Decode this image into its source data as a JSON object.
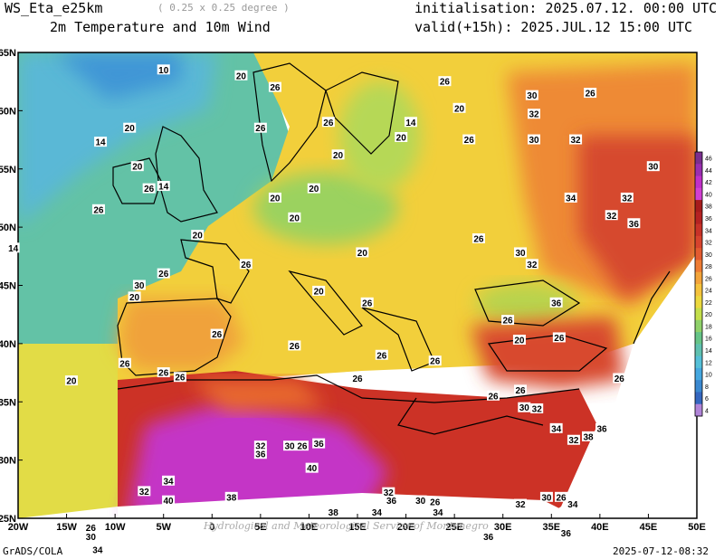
{
  "header": {
    "model": "WS_Eta_e25km",
    "resolution": "( 0.25 x 0.25 degree )",
    "variable": "2m Temperature and 10m Wind",
    "init": "initialisation: 2025.07.12. 00:00 UTC",
    "valid": "valid(+15h): 2025.JUL.12 15:00 UTC"
  },
  "footer": {
    "left": "GrADS/COLA",
    "right": "2025-07-12-08:32"
  },
  "watermark": "Hydrological and Meteorological Service of Montenegro",
  "axes": {
    "lon_labels": [
      "20W",
      "15W",
      "10W",
      "5W",
      "0",
      "5E",
      "10E",
      "15E",
      "20E",
      "25E",
      "30E",
      "35E",
      "40E",
      "45E",
      "50E"
    ],
    "lat_labels": [
      "65N",
      "60N",
      "55N",
      "50N",
      "45N",
      "40N",
      "35N",
      "30N",
      "25N"
    ]
  },
  "colorbar": {
    "levels": [
      "46",
      "44",
      "42",
      "40",
      "38",
      "36",
      "34",
      "32",
      "30",
      "28",
      "26",
      "24",
      "22",
      "20",
      "18",
      "16",
      "14",
      "12",
      "10",
      "8",
      "6",
      "4"
    ],
    "colors": [
      "#7b2f8f",
      "#9a2fb0",
      "#c030c8",
      "#d23fd2",
      "#a61c1c",
      "#b52222",
      "#c83228",
      "#d7432d",
      "#e35b30",
      "#ee7c34",
      "#f3a43a",
      "#f5c33c",
      "#ecd93e",
      "#c4df4b",
      "#8fd16a",
      "#66c487",
      "#5fc1b0",
      "#55c0d8",
      "#45a8e0",
      "#3a88d0",
      "#3466bf",
      "#b084d8"
    ]
  },
  "contour_labels": [
    {
      "t": "10",
      "lon": -5,
      "lat": 63.5
    },
    {
      "t": "20",
      "lon": 3,
      "lat": 63
    },
    {
      "t": "26",
      "lon": 6.5,
      "lat": 62
    },
    {
      "t": "26",
      "lon": 24,
      "lat": 62.5
    },
    {
      "t": "20",
      "lon": 25.5,
      "lat": 60.2
    },
    {
      "t": "30",
      "lon": 33,
      "lat": 61.3
    },
    {
      "t": "26",
      "lon": 39,
      "lat": 61.5
    },
    {
      "t": "32",
      "lon": 33.2,
      "lat": 59.7
    },
    {
      "t": "14",
      "lon": 20.5,
      "lat": 59
    },
    {
      "t": "26",
      "lon": 12,
      "lat": 59
    },
    {
      "t": "26",
      "lon": 5,
      "lat": 58.5
    },
    {
      "t": "20",
      "lon": -8.5,
      "lat": 58.5
    },
    {
      "t": "14",
      "lon": -11.5,
      "lat": 57.3
    },
    {
      "t": "26",
      "lon": 26.5,
      "lat": 57.5
    },
    {
      "t": "30",
      "lon": 33.2,
      "lat": 57.5
    },
    {
      "t": "32",
      "lon": 37.5,
      "lat": 57.5
    },
    {
      "t": "20",
      "lon": 19.5,
      "lat": 57.7
    },
    {
      "t": "20",
      "lon": 13,
      "lat": 56.2
    },
    {
      "t": "20",
      "lon": -7.7,
      "lat": 55.2
    },
    {
      "t": "14",
      "lon": -5,
      "lat": 53.5
    },
    {
      "t": "26",
      "lon": -6.5,
      "lat": 53.3
    },
    {
      "t": "26",
      "lon": -11.7,
      "lat": 51.5
    },
    {
      "t": "20",
      "lon": 10.5,
      "lat": 53.3
    },
    {
      "t": "20",
      "lon": 6.5,
      "lat": 52.5
    },
    {
      "t": "34",
      "lon": 37,
      "lat": 52.5
    },
    {
      "t": "32",
      "lon": 42.8,
      "lat": 52.5
    },
    {
      "t": "32",
      "lon": 41.2,
      "lat": 51
    },
    {
      "t": "36",
      "lon": 43.5,
      "lat": 50.3
    },
    {
      "t": "30",
      "lon": 45.5,
      "lat": 55.2
    },
    {
      "t": "20",
      "lon": 8.5,
      "lat": 50.8
    },
    {
      "t": "20",
      "lon": -1.5,
      "lat": 49.3
    },
    {
      "t": "20",
      "lon": 15.5,
      "lat": 47.8
    },
    {
      "t": "26",
      "lon": 27.5,
      "lat": 49
    },
    {
      "t": "30",
      "lon": 31.8,
      "lat": 47.8
    },
    {
      "t": "32",
      "lon": 33,
      "lat": 46.8
    },
    {
      "t": "26",
      "lon": 3.5,
      "lat": 46.8
    },
    {
      "t": "26",
      "lon": -5,
      "lat": 46
    },
    {
      "t": "30",
      "lon": -7.5,
      "lat": 45
    },
    {
      "t": "20",
      "lon": -8,
      "lat": 44
    },
    {
      "t": "20",
      "lon": 11,
      "lat": 44.5
    },
    {
      "t": "26",
      "lon": 16,
      "lat": 43.5
    },
    {
      "t": "36",
      "lon": 35.5,
      "lat": 43.5
    },
    {
      "t": "26",
      "lon": 30.5,
      "lat": 42
    },
    {
      "t": "20",
      "lon": 31.7,
      "lat": 40.3
    },
    {
      "t": "26",
      "lon": 35.8,
      "lat": 40.5
    },
    {
      "t": "26",
      "lon": 0.5,
      "lat": 40.8
    },
    {
      "t": "26",
      "lon": 8.5,
      "lat": 39.8
    },
    {
      "t": "26",
      "lon": 17.5,
      "lat": 39
    },
    {
      "t": "26",
      "lon": 23,
      "lat": 38.5
    },
    {
      "t": "26",
      "lon": -9,
      "lat": 38.3
    },
    {
      "t": "26",
      "lon": -5,
      "lat": 37.5
    },
    {
      "t": "26",
      "lon": 15,
      "lat": 37
    },
    {
      "t": "26",
      "lon": 29,
      "lat": 35.5
    },
    {
      "t": "26",
      "lon": 31.8,
      "lat": 36
    },
    {
      "t": "26",
      "lon": 42,
      "lat": 37
    },
    {
      "t": "30",
      "lon": 32.2,
      "lat": 34.5
    },
    {
      "t": "32",
      "lon": 33.5,
      "lat": 34.4
    },
    {
      "t": "34",
      "lon": 35.5,
      "lat": 32.7
    },
    {
      "t": "32",
      "lon": 37.3,
      "lat": 31.7
    },
    {
      "t": "38",
      "lon": 38.8,
      "lat": 32
    },
    {
      "t": "36",
      "lon": 40.2,
      "lat": 32.7
    },
    {
      "t": "20",
      "lon": -14.5,
      "lat": 36.8
    },
    {
      "t": "26",
      "lon": -3.3,
      "lat": 37.1
    },
    {
      "t": "32",
      "lon": 5,
      "lat": 31.2
    },
    {
      "t": "36",
      "lon": 5,
      "lat": 30.5
    },
    {
      "t": "30",
      "lon": 8,
      "lat": 31.2
    },
    {
      "t": "26",
      "lon": 9.3,
      "lat": 31.2
    },
    {
      "t": "36",
      "lon": 11,
      "lat": 31.4
    },
    {
      "t": "34",
      "lon": 17,
      "lat": 25.5
    },
    {
      "t": "40",
      "lon": 10.3,
      "lat": 29.3
    },
    {
      "t": "34",
      "lon": -4.5,
      "lat": 28.2
    },
    {
      "t": "32",
      "lon": -7,
      "lat": 27.3
    },
    {
      "t": "40",
      "lon": -4.5,
      "lat": 26.5
    },
    {
      "t": "38",
      "lon": 2,
      "lat": 26.8
    },
    {
      "t": "36",
      "lon": 18.5,
      "lat": 26.5
    },
    {
      "t": "32",
      "lon": 18.2,
      "lat": 27.2
    },
    {
      "t": "30",
      "lon": 21.5,
      "lat": 26.5
    },
    {
      "t": "26",
      "lon": 23,
      "lat": 26.4
    },
    {
      "t": "34",
      "lon": 23.3,
      "lat": 25.5
    },
    {
      "t": "32",
      "lon": 31.8,
      "lat": 26.2
    },
    {
      "t": "30",
      "lon": 34.5,
      "lat": 26.8
    },
    {
      "t": "26",
      "lon": 36,
      "lat": 26.8
    },
    {
      "t": "34",
      "lon": 37.2,
      "lat": 26.2
    },
    {
      "t": "38",
      "lon": 12.5,
      "lat": 25.5
    },
    {
      "t": "26",
      "lon": -12.5,
      "lat": 24.2
    },
    {
      "t": "30",
      "lon": -12.5,
      "lat": 23.4
    },
    {
      "t": "36",
      "lon": 28.5,
      "lat": 23.4
    },
    {
      "t": "36",
      "lon": 36.5,
      "lat": 23.7
    },
    {
      "t": "34",
      "lon": -11.8,
      "lat": 22.3
    },
    {
      "t": "14",
      "lon": -20.5,
      "lat": 48.2
    }
  ]
}
